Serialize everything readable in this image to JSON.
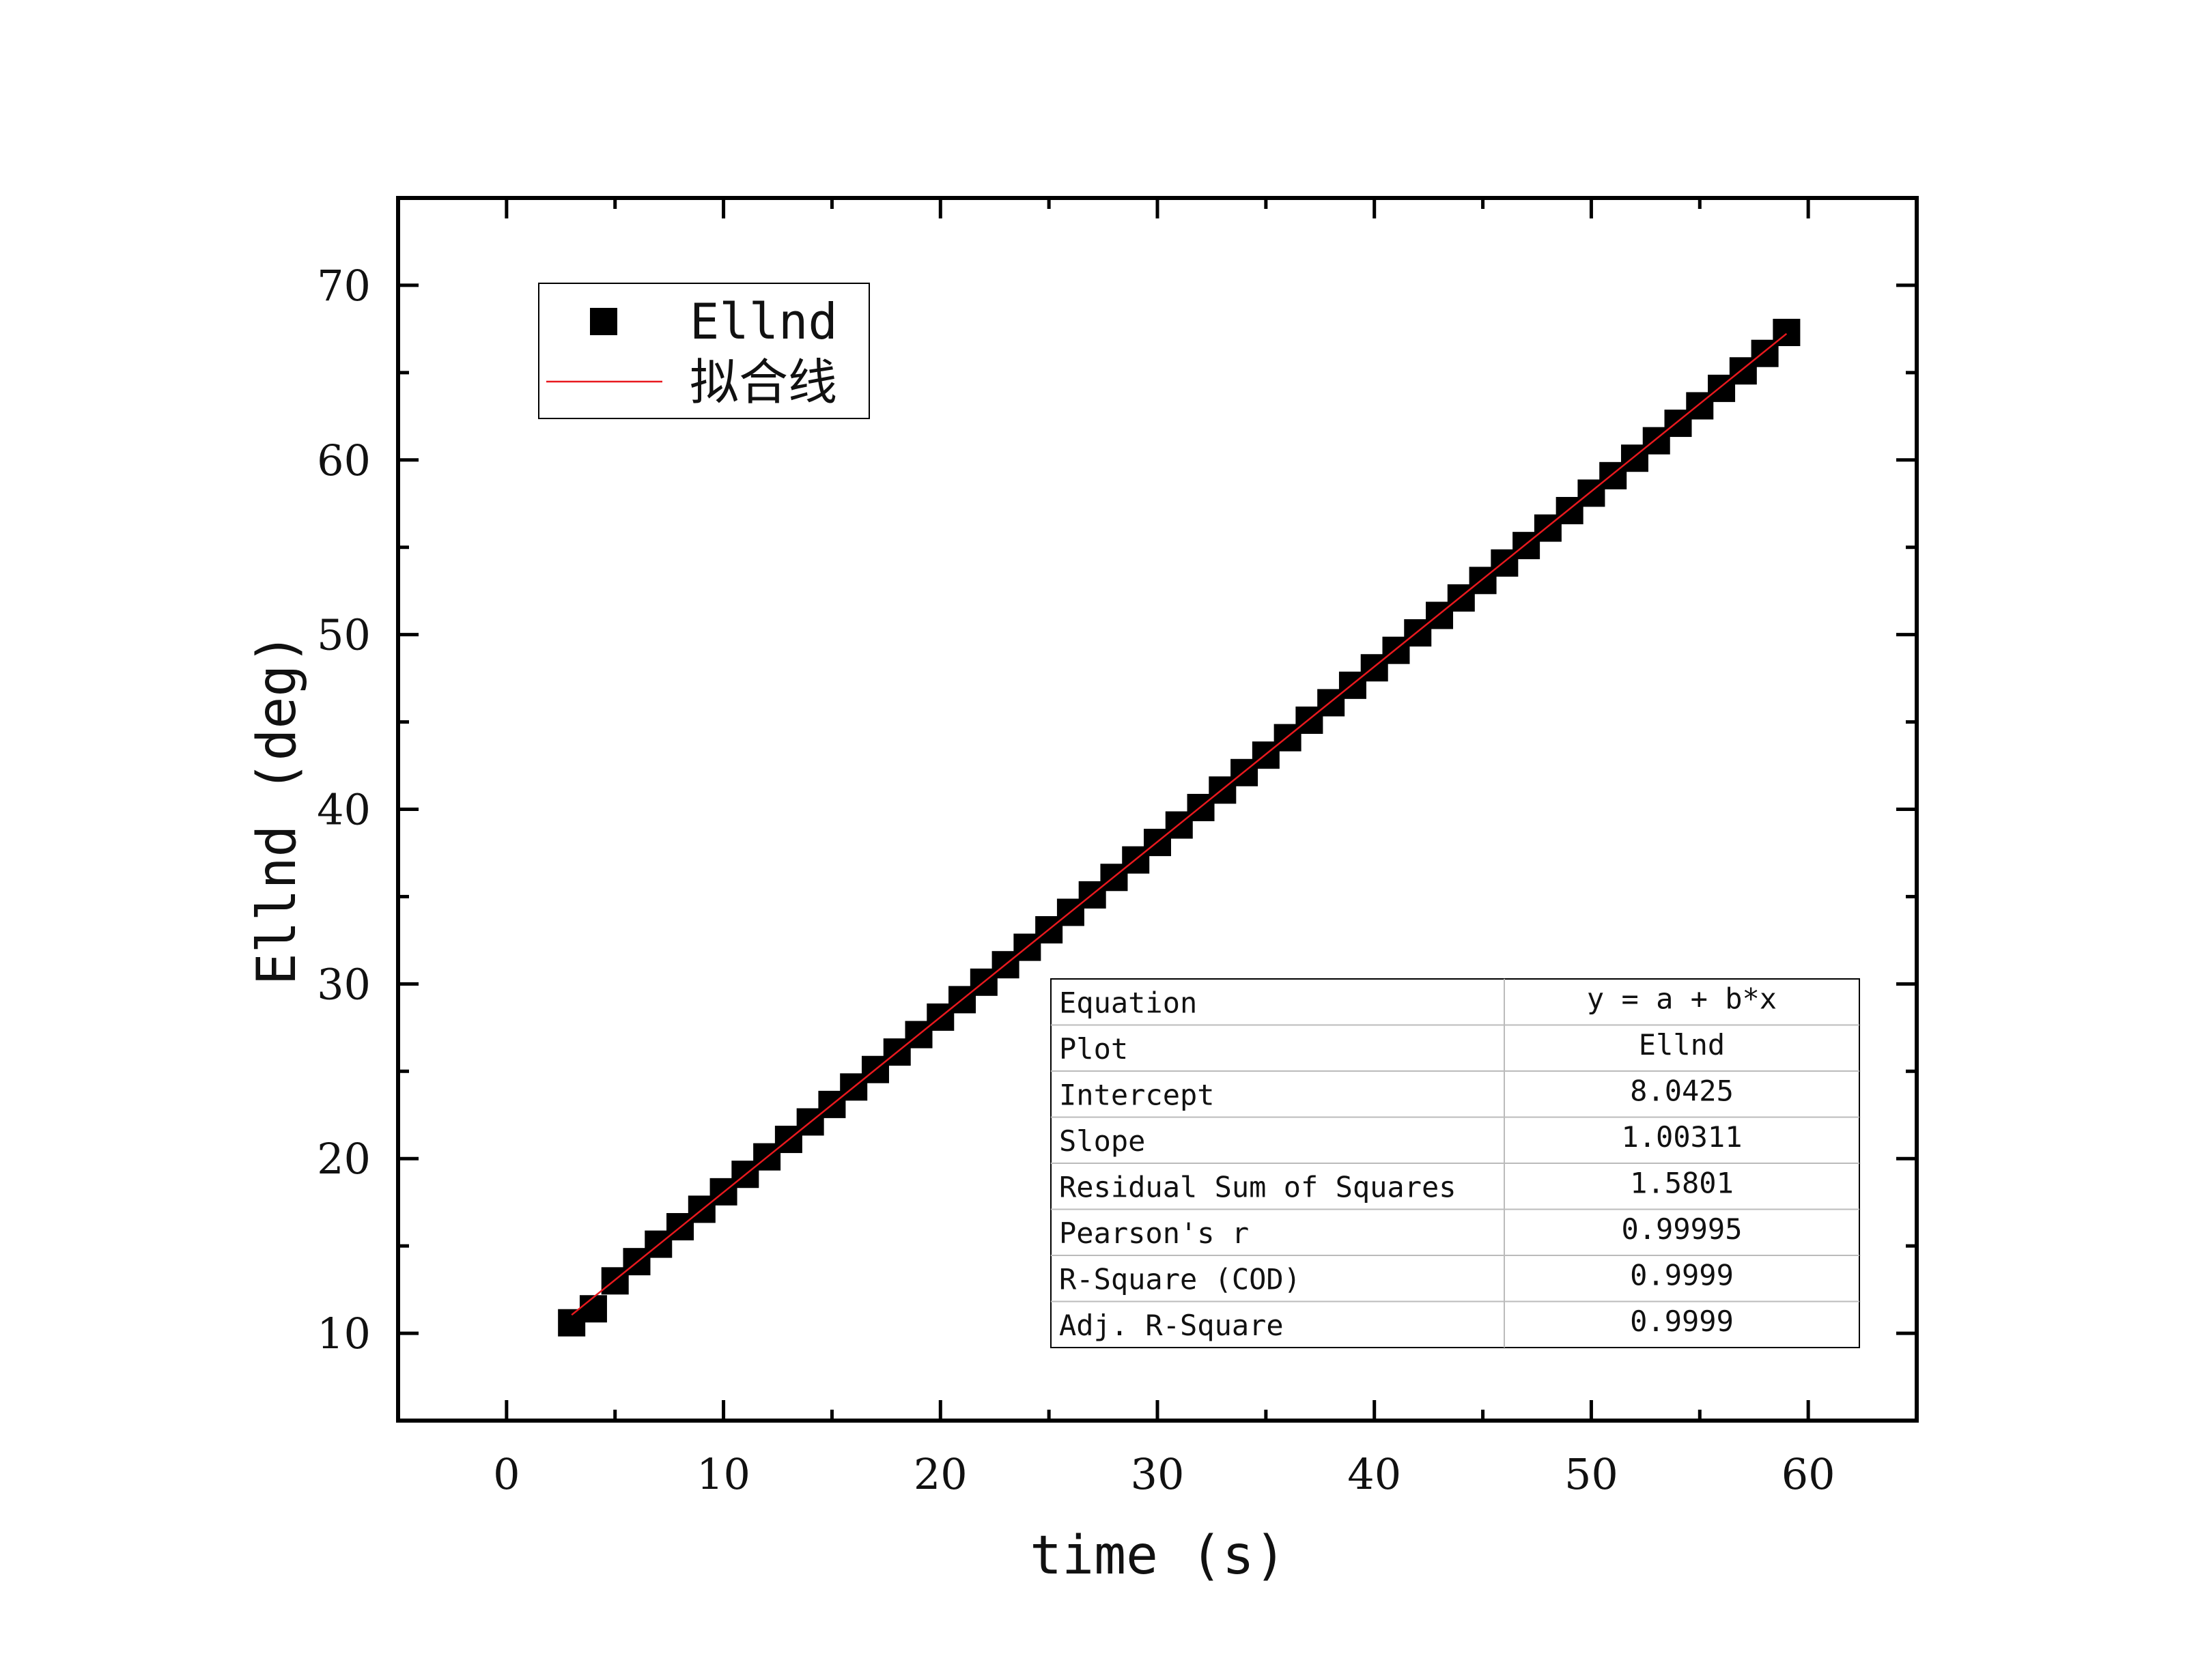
{
  "chart_data": {
    "type": "scatter",
    "xlabel": "time (s)",
    "ylabel": "Ellnd (deg)",
    "xlim": [
      -5,
      65
    ],
    "ylim": [
      5,
      75
    ],
    "xticks": [
      0,
      10,
      20,
      30,
      40,
      50,
      60
    ],
    "yticks": [
      10,
      20,
      30,
      40,
      50,
      60,
      70
    ],
    "legend_position": "top-left",
    "grid": false,
    "series": [
      {
        "name": "Ellnd",
        "marker": "square",
        "color": "#000000",
        "x": [
          3,
          4,
          5,
          6,
          7,
          8,
          9,
          10,
          11,
          12,
          13,
          14,
          15,
          16,
          17,
          18,
          19,
          20,
          21,
          22,
          23,
          24,
          25,
          26,
          27,
          28,
          29,
          30,
          31,
          32,
          33,
          34,
          35,
          36,
          37,
          38,
          39,
          40,
          41,
          42,
          43,
          44,
          45,
          46,
          47,
          48,
          49,
          50,
          51,
          52,
          53,
          54,
          55,
          56,
          57,
          58,
          59
        ],
        "y": [
          10.6,
          11.4,
          13.0,
          14.1,
          15.1,
          16.1,
          17.1,
          18.1,
          19.1,
          20.1,
          21.1,
          22.1,
          23.1,
          24.1,
          25.1,
          26.1,
          27.1,
          28.1,
          29.1,
          30.1,
          31.1,
          32.1,
          33.1,
          34.1,
          35.1,
          36.1,
          37.1,
          38.1,
          39.1,
          40.1,
          41.1,
          42.1,
          43.1,
          44.1,
          45.1,
          46.1,
          47.1,
          48.1,
          49.1,
          50.1,
          51.1,
          52.1,
          53.1,
          54.1,
          55.1,
          56.1,
          57.1,
          58.1,
          59.1,
          60.1,
          61.1,
          62.1,
          63.1,
          64.1,
          65.1,
          66.1,
          67.3
        ]
      },
      {
        "name": "拟合线",
        "type": "line",
        "color": "#e8191e",
        "x": [
          3,
          59
        ],
        "y": [
          11.05,
          67.23
        ]
      }
    ],
    "fit_table": {
      "rows": [
        {
          "label": "Equation",
          "value": "y = a + b*x"
        },
        {
          "label": "Plot",
          "value": "Ellnd"
        },
        {
          "label": "Intercept",
          "value": "8.0425"
        },
        {
          "label": "Slope",
          "value": "1.00311"
        },
        {
          "label": "Residual Sum of Squares",
          "value": "1.5801"
        },
        {
          "label": "Pearson's r",
          "value": "0.99995"
        },
        {
          "label": "R-Square (COD)",
          "value": "0.9999"
        },
        {
          "label": "Adj. R-Square",
          "value": "0.9999"
        }
      ]
    }
  }
}
